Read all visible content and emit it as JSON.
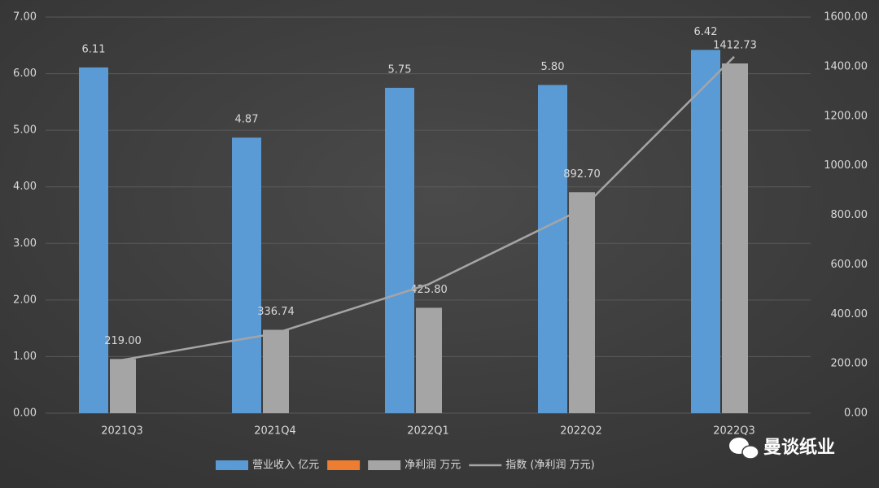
{
  "chart_data": {
    "type": "bar",
    "categories": [
      "2021Q3",
      "2021Q4",
      "2022Q1",
      "2022Q2",
      "2022Q3"
    ],
    "series": [
      {
        "name": "营业收入 亿元",
        "color": "#5b9bd5",
        "values": [
          6.11,
          4.87,
          5.75,
          5.8,
          6.42
        ],
        "value_labels": [
          "6.11",
          "4.87",
          "5.75",
          "5.80",
          "6.42"
        ]
      },
      {
        "color": "#ed7d31",
        "values": [
          null,
          null,
          null,
          null,
          null
        ]
      },
      {
        "name": "净利润 万元",
        "color": "#a5a5a5",
        "axis": "y2",
        "values": [
          219,
          336.74,
          425.8,
          892.7,
          1412.73
        ],
        "value_labels": [
          "219.00",
          "336.74",
          "425.80",
          "892.70",
          "1412.73"
        ]
      },
      {
        "name": "指数 (净利润 万元)",
        "type": "line",
        "color": "#a5a5a5",
        "axis": "y2",
        "values": [
          215,
          322,
          520,
          822,
          1440
        ]
      }
    ],
    "ylim": [
      0,
      7
    ],
    "yticks": [
      {
        "value": 0,
        "label": "0.00"
      },
      {
        "value": 1,
        "label": "1.00"
      },
      {
        "value": 2,
        "label": "2.00"
      },
      {
        "value": 3,
        "label": "3.00"
      },
      {
        "value": 4,
        "label": "4.00"
      },
      {
        "value": 5,
        "label": "5.00"
      },
      {
        "value": 6,
        "label": "6.00"
      },
      {
        "value": 7,
        "label": "7.00"
      }
    ],
    "y2lim": [
      0,
      1600
    ],
    "y2ticks": [
      {
        "value": 0,
        "label": "0.00"
      },
      {
        "value": 200,
        "label": "200.00"
      },
      {
        "value": 400,
        "label": "400.00"
      },
      {
        "value": 600,
        "label": "600.00"
      },
      {
        "value": 800,
        "label": "800.00"
      },
      {
        "value": 1000,
        "label": "1000.00"
      },
      {
        "value": 1200,
        "label": "1200.00"
      },
      {
        "value": 1400,
        "label": "1400.00"
      },
      {
        "value": 1600,
        "label": "1600.00"
      }
    ],
    "grid": true,
    "legend": "bottom",
    "watermark": "曼谈纸业"
  }
}
